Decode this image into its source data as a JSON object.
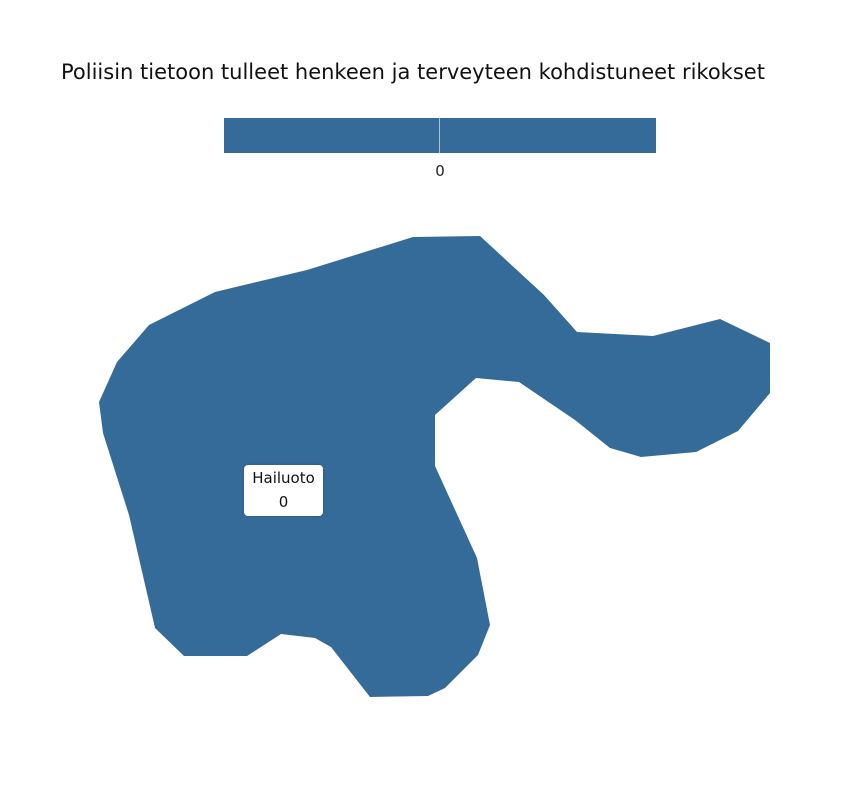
{
  "title": "Poliisin tietoon tulleet henkeen ja terveyteen kohdistuneet rikokset",
  "colors": {
    "fill": "#356b98",
    "background": "#ffffff"
  },
  "legend": {
    "tick_label": "0"
  },
  "region": {
    "name": "Hailuoto",
    "value": "0"
  }
}
